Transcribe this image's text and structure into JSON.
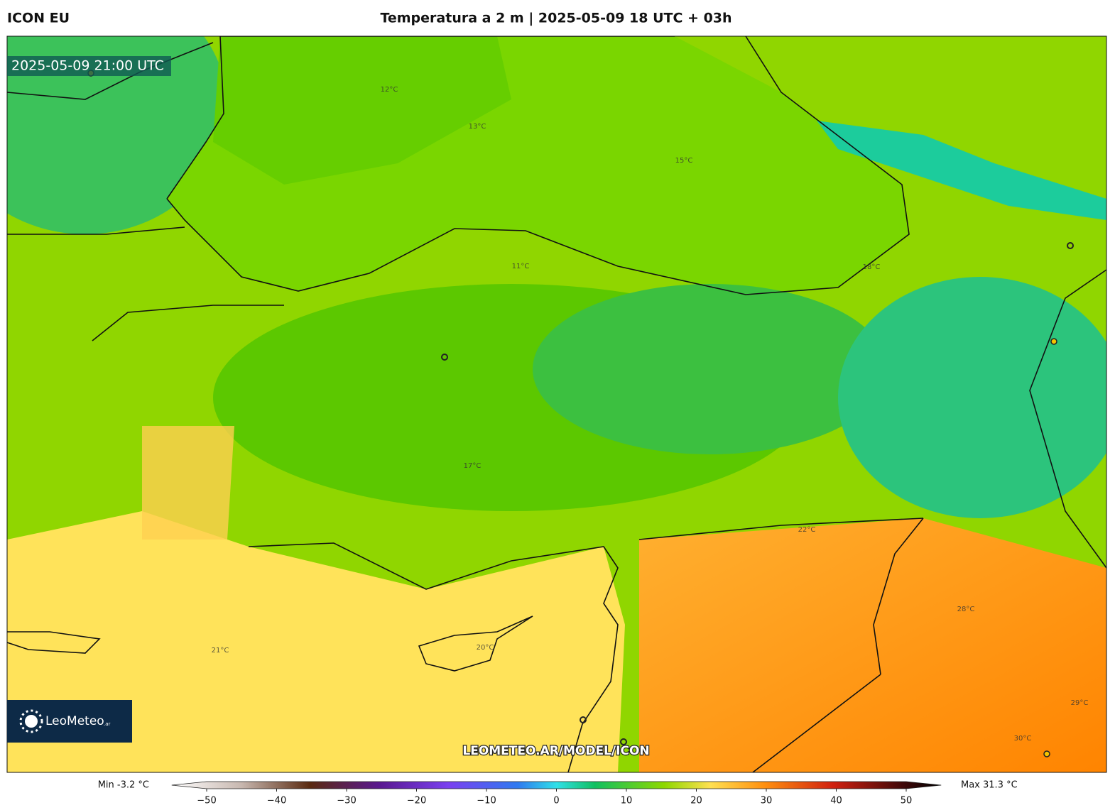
{
  "header": {
    "model": "ICON EU",
    "title": "Temperatura a 2 m | 2025-05-09 18 UTC + 03h"
  },
  "map": {
    "valid_time": "2025-05-09 21:00 UTC",
    "watermark": "LEOMETEO.AR/MODEL/ICON",
    "logo": {
      "name": "LeoMeteo",
      "suffix": ".ar"
    },
    "contour_labels": [
      "12°C",
      "13°C",
      "15°C",
      "11°C",
      "18°C",
      "17°C",
      "21°C",
      "20°C",
      "22°C",
      "28°C",
      "29°C",
      "30°C"
    ]
  },
  "colorbar": {
    "min_label": "Min -3.2 °C",
    "max_label": "Max 31.3 °C",
    "range": [
      -50,
      50
    ],
    "ticks": [
      {
        "value": -50,
        "label": "−50"
      },
      {
        "value": -40,
        "label": "−40"
      },
      {
        "value": -30,
        "label": "−30"
      },
      {
        "value": -20,
        "label": "−20"
      },
      {
        "value": -10,
        "label": "−10"
      },
      0,
      10,
      20,
      30,
      40,
      50
    ]
  }
}
